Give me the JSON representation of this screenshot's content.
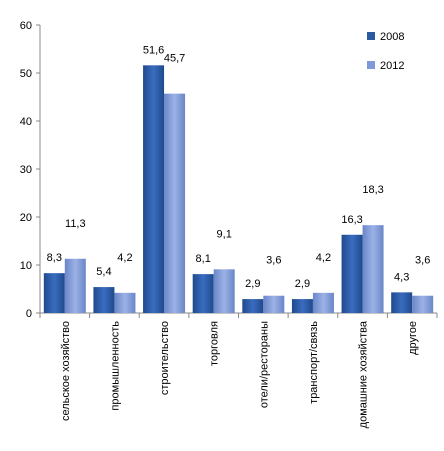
{
  "chart_data": {
    "type": "bar",
    "title": "",
    "xlabel": "",
    "ylabel": "",
    "ylim": [
      0,
      60
    ],
    "yticks": [
      0,
      10,
      20,
      30,
      40,
      50,
      60
    ],
    "grid": false,
    "legend_position": "top-right",
    "categories": [
      "сельское хозяйство",
      "промышленность",
      "строительство",
      "торговля",
      "отели/рестораны",
      "транспорт/связь",
      "домашние хозяйства",
      "другое"
    ],
    "series": [
      {
        "name": "2008",
        "color": "#2c5aa0",
        "values": [
          8.3,
          5.4,
          51.6,
          8.1,
          2.9,
          2.9,
          16.3,
          4.3
        ],
        "labels": [
          "8,3",
          "5,4",
          "51,6",
          "8,1",
          "2,9",
          "2,9",
          "16,3",
          "4,3"
        ]
      },
      {
        "name": "2012",
        "color": "#7f9ad9",
        "values": [
          11.3,
          4.2,
          45.7,
          9.1,
          3.6,
          4.2,
          18.3,
          3.6
        ],
        "labels": [
          "11,3",
          "4,2",
          "45,7",
          "9,1",
          "3,6",
          "4,2",
          "18,3",
          "3,6"
        ]
      }
    ]
  }
}
